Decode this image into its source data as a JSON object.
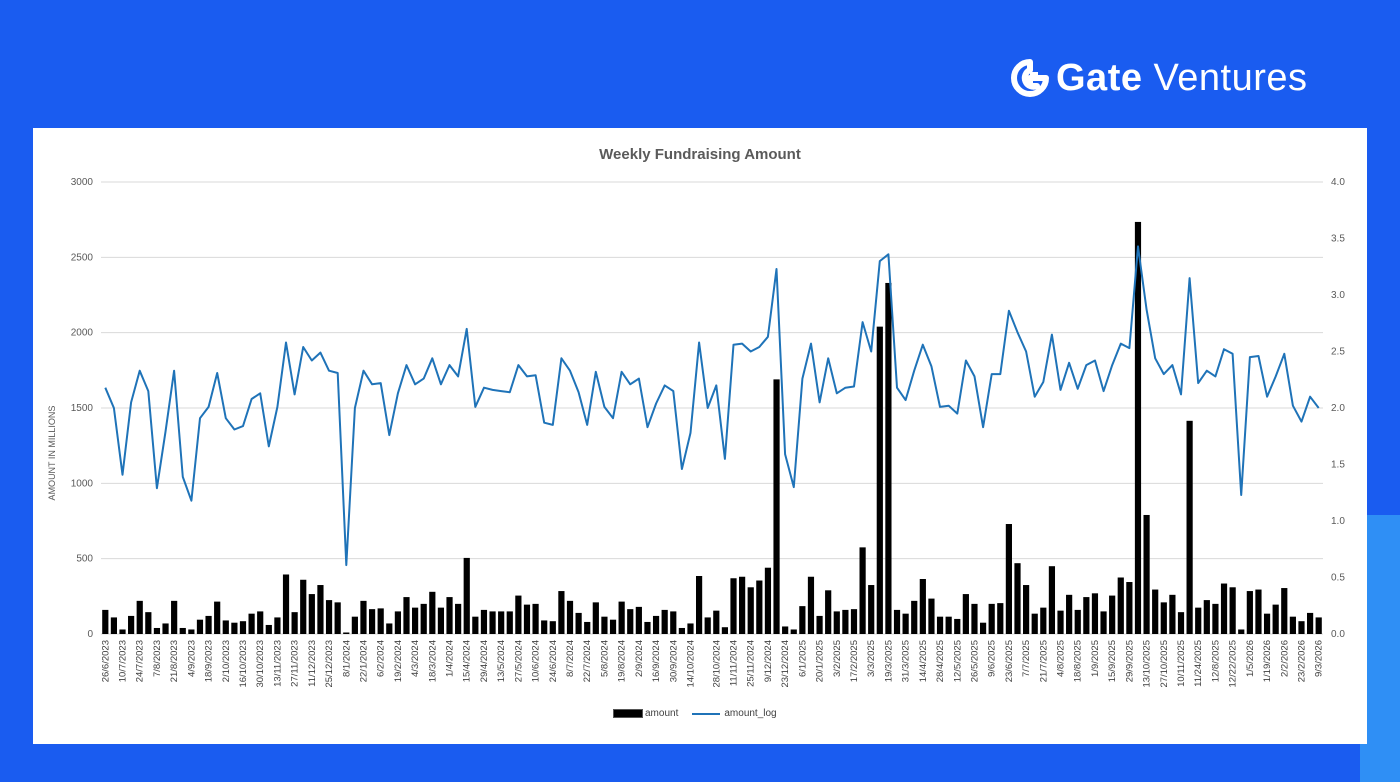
{
  "brand": {
    "strong": "Gate",
    "light": " Ventures"
  },
  "chart_data": {
    "type": "bar+line",
    "title": "Weekly Fundraising Amount",
    "ylabel": "AMOUNT IN MILLIONS",
    "ylim": [
      0,
      3000
    ],
    "y_ticks": [
      "0",
      "500",
      "1000",
      "1500",
      "2000",
      "2500",
      "3000"
    ],
    "y2lim": [
      0,
      4.0
    ],
    "y2_ticks": [
      "0.0",
      "0.5",
      "1.0",
      "1.5",
      "2.0",
      "2.5",
      "3.0",
      "3.5",
      "4.0"
    ],
    "grid": true,
    "legend_position": "bottom",
    "x_tick_labels": [
      "26/6/2023",
      "10/7/2023",
      "24/7/2023",
      "7/8/2023",
      "21/8/2023",
      "4/9/2023",
      "18/9/2023",
      "2/10/2023",
      "16/10/2023",
      "30/10/2023",
      "13/11/2023",
      "27/11/2023",
      "11/12/2023",
      "25/12/2023",
      "8/1/2024",
      "22/1/2024",
      "6/2/2024",
      "19/2/2024",
      "4/3/2024",
      "18/3/2024",
      "1/4/2024",
      "15/4/2024",
      "29/4/2024",
      "13/5/2024",
      "27/5/2024",
      "10/6/2024",
      "24/6/2024",
      "8/7/2024",
      "22/7/2024",
      "5/8/2024",
      "19/8/2024",
      "2/9/2024",
      "16/9/2024",
      "30/9/2024",
      "14/10/2024",
      "28/10/2024",
      "11/11/2024",
      "25/11/2024",
      "9/12/2024",
      "23/12/2024",
      "6/1/2025",
      "20/1/2025",
      "3/2/2025",
      "17/2/2025",
      "3/3/2025",
      "19/3/2025",
      "31/3/2025",
      "14/4/2025",
      "28/4/2025",
      "12/5/2025",
      "26/5/2025",
      "9/6/2025",
      "23/6/2025",
      "7/7/2025",
      "21/7/2025",
      "4/8/2025",
      "18/8/2025",
      "1/9/2025",
      "15/9/2025",
      "29/9/2025",
      "13/10/2025",
      "27/10/2025",
      "10/11/2025",
      "11/24/2025",
      "12/8/2025",
      "12/22/2025",
      "1/5/2026",
      "1/19/2026",
      "2/2/2026",
      "23/2/2026",
      "9/3/2026"
    ],
    "series": [
      {
        "name": "amount",
        "type": "bar",
        "color": "#000000",
        "values": [
          160,
          110,
          30,
          120,
          220,
          145,
          40,
          70,
          220,
          40,
          30,
          95,
          120,
          215,
          90,
          75,
          85,
          135,
          150,
          60,
          110,
          395,
          145,
          360,
          265,
          325,
          225,
          210,
          10,
          115,
          220,
          165,
          170,
          70,
          150,
          245,
          175,
          200,
          280,
          175,
          245,
          200,
          505,
          115,
          160,
          150,
          150,
          150,
          255,
          195,
          200,
          90,
          85,
          285,
          220,
          140,
          80,
          210,
          115,
          95,
          215,
          165,
          180,
          80,
          120,
          160,
          150,
          40,
          70,
          385,
          110,
          155,
          45,
          370,
          380,
          310,
          355,
          440,
          1690,
          50,
          30,
          185,
          380,
          120,
          290,
          150,
          160,
          165,
          575,
          325,
          2040,
          2330,
          160,
          135,
          220,
          365,
          235,
          115,
          115,
          100,
          265,
          200,
          75,
          200,
          205,
          730,
          470,
          325,
          135,
          175,
          450,
          155,
          260,
          160,
          245,
          270,
          150,
          255,
          375,
          345,
          2735,
          790,
          295,
          210,
          260,
          145,
          1415,
          175,
          225,
          200,
          335,
          310,
          30,
          285,
          295,
          135,
          195,
          305,
          115,
          85,
          140,
          110
        ]
      },
      {
        "name": "amount_log",
        "type": "line",
        "axis": "right",
        "color": "#1f73b8",
        "values": [
          2.18,
          2.0,
          1.41,
          2.05,
          2.33,
          2.15,
          1.29,
          1.79,
          2.33,
          1.39,
          1.18,
          1.91,
          2.01,
          2.31,
          1.91,
          1.81,
          1.84,
          2.08,
          2.13,
          1.66,
          2.01,
          2.58,
          2.12,
          2.54,
          2.42,
          2.49,
          2.33,
          2.31,
          0.61,
          2.0,
          2.33,
          2.21,
          2.22,
          1.76,
          2.13,
          2.38,
          2.21,
          2.26,
          2.44,
          2.21,
          2.38,
          2.28,
          2.7,
          2.01,
          2.18,
          2.16,
          2.15,
          2.14,
          2.38,
          2.28,
          2.29,
          1.87,
          1.85,
          2.44,
          2.33,
          2.14,
          1.85,
          2.32,
          2.01,
          1.91,
          2.32,
          2.21,
          2.26,
          1.83,
          2.04,
          2.2,
          2.15,
          1.46,
          1.78,
          2.58,
          2.0,
          2.2,
          1.55,
          2.56,
          2.57,
          2.5,
          2.54,
          2.63,
          3.23,
          1.59,
          1.3,
          2.26,
          2.57,
          2.05,
          2.44,
          2.13,
          2.18,
          2.19,
          2.76,
          2.5,
          3.3,
          3.36,
          2.18,
          2.07,
          2.33,
          2.56,
          2.37,
          2.01,
          2.02,
          1.95,
          2.42,
          2.28,
          1.83,
          2.3,
          2.3,
          2.86,
          2.67,
          2.5,
          2.1,
          2.23,
          2.65,
          2.16,
          2.4,
          2.17,
          2.38,
          2.42,
          2.15,
          2.38,
          2.57,
          2.53,
          3.43,
          2.87,
          2.44,
          2.3,
          2.38,
          2.12,
          3.15,
          2.22,
          2.33,
          2.28,
          2.52,
          2.48,
          1.23,
          2.45,
          2.46,
          2.1,
          2.28,
          2.48,
          2.02,
          1.88,
          2.1,
          2.0
        ]
      }
    ]
  }
}
